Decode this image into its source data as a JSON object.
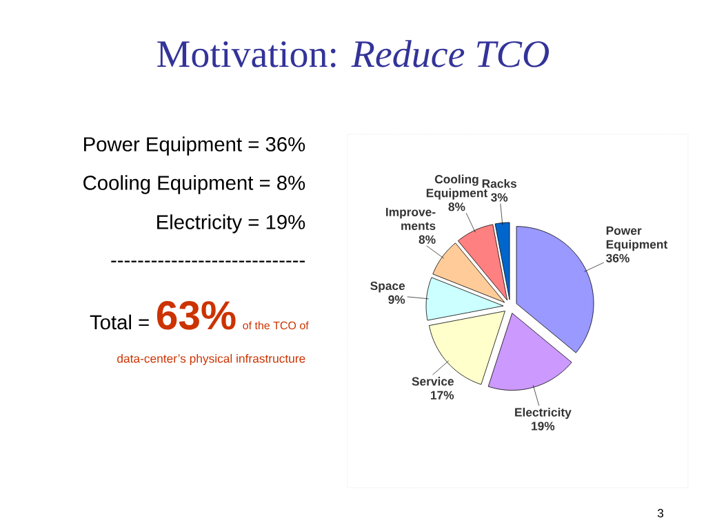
{
  "chart_data": {
    "type": "pie",
    "title": "Motivation: *Reduce TCO*",
    "categories": [
      "Power Equipment",
      "Electricity",
      "Service",
      "Space",
      "Improve-ments",
      "Cooling Equipment",
      "Racks"
    ],
    "values": [
      36,
      19,
      17,
      9,
      8,
      8,
      3
    ],
    "colors": [
      "#9999ff",
      "#cc99ff",
      "#ffffcc",
      "#ccffff",
      "#ffcc99",
      "#ff8080",
      "#0066cc"
    ],
    "value_labels": [
      "36%",
      "19%",
      "17%",
      "9%",
      "8%",
      "8%",
      "3%"
    ],
    "annotations": [
      "Power Equipment  = 36%",
      "Cooling Equipment = 8%",
      "Electricity = 19%",
      "-----------------------------",
      "Total =",
      "63%",
      "of the TCO of",
      "data-center’s physical infrastructure",
      "3"
    ]
  }
}
